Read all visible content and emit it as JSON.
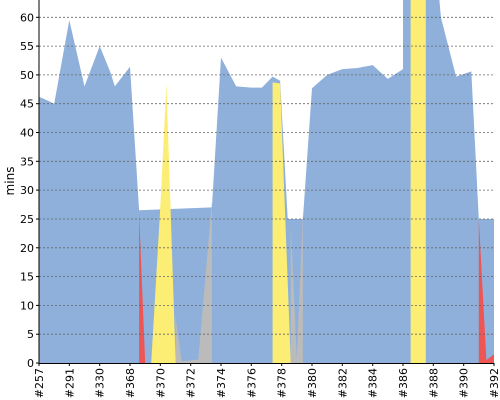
{
  "chart_data": {
    "type": "area",
    "ylabel": "mins",
    "xlabel": "",
    "title": "",
    "ylim": [
      0,
      63
    ],
    "yticks": [
      0,
      5,
      10,
      15,
      20,
      25,
      30,
      35,
      40,
      45,
      50,
      55,
      60
    ],
    "grid": true,
    "x_tick_labels": [
      "#257",
      "#291",
      "#330",
      "#368",
      "#370",
      "#372",
      "#374",
      "#376",
      "#378",
      "#380",
      "#382",
      "#384",
      "#386",
      "#388",
      "#390",
      "#392"
    ],
    "x_tick_index": [
      0,
      2,
      4,
      6,
      8,
      10,
      12,
      14,
      16,
      18,
      20,
      22,
      24,
      26,
      28,
      30
    ],
    "x_index_max": 30,
    "colors": {
      "passed": "#8eb0db",
      "failed": "#ee5555",
      "unstable": "#fced74",
      "aborted": "#bbbbbb"
    },
    "series": [
      {
        "status": "passed",
        "points": [
          [
            0,
            46.2
          ],
          [
            0.6,
            45.5
          ],
          [
            1,
            45
          ],
          [
            2,
            59.5
          ],
          [
            3,
            48
          ],
          [
            4,
            55
          ],
          [
            4.7,
            50.5
          ],
          [
            5,
            48
          ],
          [
            6,
            51.4
          ],
          [
            6.6,
            26.5
          ],
          [
            11.4,
            27
          ],
          [
            12,
            53
          ],
          [
            13,
            48
          ],
          [
            14,
            47.8
          ],
          [
            14.7,
            47.8
          ],
          [
            15.4,
            49.7
          ],
          [
            15.9,
            49
          ],
          [
            16.4,
            25
          ],
          [
            17.4,
            25
          ],
          [
            18,
            47.7
          ],
          [
            19,
            50
          ],
          [
            20,
            51
          ],
          [
            21,
            51.2
          ],
          [
            22,
            51.7
          ],
          [
            23,
            49.3
          ],
          [
            24,
            51
          ],
          [
            24,
            63
          ],
          [
            26.4,
            63
          ],
          [
            26.5,
            60
          ],
          [
            27.5,
            49.7
          ],
          [
            28.5,
            50.6
          ],
          [
            29,
            25
          ],
          [
            31,
            25
          ],
          [
            31.1,
            50
          ],
          [
            31.1,
            0
          ],
          [
            0,
            0
          ]
        ]
      },
      {
        "status": "failed",
        "points": [
          [
            6.6,
            26
          ],
          [
            7,
            0
          ],
          [
            7.5,
            0
          ],
          [
            8,
            25
          ],
          [
            8,
            0
          ],
          [
            6.6,
            0
          ]
        ]
      },
      {
        "status": "failed",
        "points": [
          [
            29,
            25
          ],
          [
            29.5,
            0.5
          ],
          [
            30.5,
            1.5
          ],
          [
            31.1,
            27
          ],
          [
            31.1,
            0
          ],
          [
            29,
            0
          ]
        ]
      },
      {
        "status": "unstable",
        "points": [
          [
            7.4,
            0
          ],
          [
            8,
            27
          ],
          [
            8.4,
            48.5
          ],
          [
            9,
            1
          ],
          [
            9,
            0
          ]
        ]
      },
      {
        "status": "unstable",
        "points": [
          [
            15.4,
            0
          ],
          [
            15.4,
            48.7
          ],
          [
            15.9,
            48.5
          ],
          [
            16.6,
            0
          ]
        ]
      },
      {
        "status": "unstable",
        "points": [
          [
            24.5,
            0
          ],
          [
            24.5,
            63
          ],
          [
            25.5,
            63
          ],
          [
            25.5,
            0
          ]
        ]
      },
      {
        "status": "aborted",
        "points": [
          [
            9,
            0
          ],
          [
            9,
            8
          ],
          [
            9.4,
            0.3
          ],
          [
            10.5,
            0.6
          ],
          [
            11.4,
            28
          ],
          [
            11.4,
            0
          ]
        ]
      },
      {
        "status": "aborted",
        "points": [
          [
            16.6,
            0
          ],
          [
            16.6,
            24
          ],
          [
            17,
            0.8
          ],
          [
            17.4,
            26
          ],
          [
            17.4,
            0
          ]
        ]
      }
    ]
  }
}
